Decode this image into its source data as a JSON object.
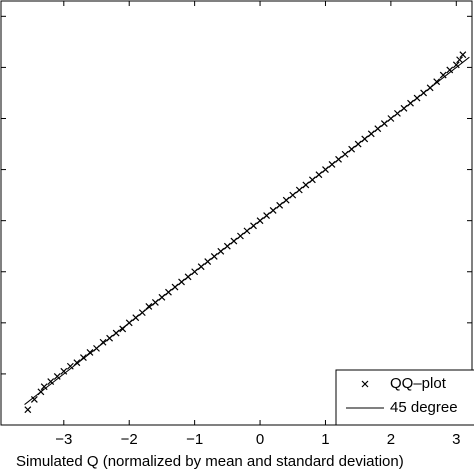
{
  "chart_data": {
    "type": "scatter",
    "xlabel": "Simulated Q (normalized by mean and standard deviation)",
    "xlim": [
      -3.96,
      3.24
    ],
    "ylim": [
      -4.0,
      4.3
    ],
    "xticks": [
      {
        "value": -3,
        "label": "−3"
      },
      {
        "value": -2,
        "label": "−2"
      },
      {
        "value": -1,
        "label": "−1"
      },
      0,
      1,
      2,
      3
    ],
    "yticks": [
      -3,
      -2,
      -1,
      0,
      1,
      2,
      3,
      4
    ],
    "series": [
      {
        "name": "QQ–plot",
        "color": "#000000",
        "marker": "x",
        "x": [
          -3.55,
          -3.45,
          -3.35,
          -3.3,
          -3.2,
          -3.1,
          -3.0,
          -2.9,
          -2.8,
          -2.7,
          -2.6,
          -2.5,
          -2.4,
          -2.3,
          -2.2,
          -2.1,
          -2.0,
          -1.9,
          -1.8,
          -1.7,
          -1.6,
          -1.5,
          -1.4,
          -1.3,
          -1.2,
          -1.1,
          -1.0,
          -0.9,
          -0.8,
          -0.7,
          -0.6,
          -0.5,
          -0.4,
          -0.3,
          -0.2,
          -0.1,
          0.0,
          0.1,
          0.2,
          0.3,
          0.4,
          0.5,
          0.6,
          0.7,
          0.8,
          0.9,
          1.0,
          1.1,
          1.2,
          1.3,
          1.4,
          1.5,
          1.6,
          1.7,
          1.8,
          1.9,
          2.0,
          2.1,
          2.2,
          2.3,
          2.4,
          2.5,
          2.6,
          2.7,
          2.8,
          2.9,
          3.0,
          3.05,
          3.1
        ],
        "y": [
          -3.7,
          -3.5,
          -3.35,
          -3.25,
          -3.15,
          -3.05,
          -2.95,
          -2.85,
          -2.78,
          -2.68,
          -2.58,
          -2.5,
          -2.38,
          -2.3,
          -2.2,
          -2.12,
          -2.0,
          -1.9,
          -1.8,
          -1.68,
          -1.6,
          -1.5,
          -1.4,
          -1.3,
          -1.2,
          -1.1,
          -1.0,
          -0.9,
          -0.8,
          -0.7,
          -0.6,
          -0.5,
          -0.4,
          -0.3,
          -0.2,
          -0.1,
          0.0,
          0.1,
          0.2,
          0.3,
          0.4,
          0.5,
          0.6,
          0.7,
          0.8,
          0.9,
          1.0,
          1.1,
          1.2,
          1.3,
          1.4,
          1.5,
          1.6,
          1.7,
          1.8,
          1.9,
          2.0,
          2.1,
          2.2,
          2.3,
          2.4,
          2.5,
          2.6,
          2.72,
          2.85,
          2.95,
          3.05,
          3.15,
          3.25
        ]
      },
      {
        "name": "45 degree",
        "color": "#000000",
        "marker": "line",
        "x": [
          -3.6,
          3.2
        ],
        "y": [
          -3.6,
          3.2
        ]
      }
    ]
  }
}
